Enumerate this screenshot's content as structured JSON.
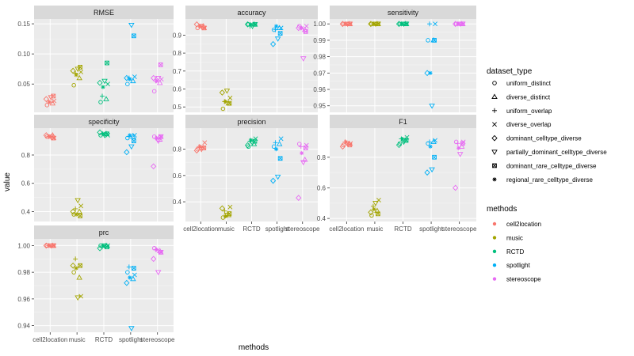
{
  "chart_data": {
    "type": "scatter",
    "xlabel": "methods",
    "ylabel": "value",
    "categories": [
      "cell2location",
      "music",
      "RCTD",
      "spotlight",
      "stereoscope"
    ],
    "colors": {
      "cell2location": "#F8766D",
      "music": "#A3A500",
      "RCTD": "#00BF7D",
      "spotlight": "#00B0F6",
      "stereoscope": "#E76BF3"
    },
    "legend_dataset_type": {
      "title": "dataset_type",
      "placement": "right",
      "entries": [
        {
          "label": "uniform_distinct",
          "shape": "circle"
        },
        {
          "label": "diverse_distinct",
          "shape": "triangle"
        },
        {
          "label": "uniform_overlap",
          "shape": "plus"
        },
        {
          "label": "diverse_overlap",
          "shape": "cross"
        },
        {
          "label": "dominant_celltype_diverse",
          "shape": "diamond"
        },
        {
          "label": "partially_dominant_celltype_diverse",
          "shape": "triangle-down"
        },
        {
          "label": "dominant_rare_celltype_diverse",
          "shape": "square-cross"
        },
        {
          "label": "regional_rare_celltype_diverse",
          "shape": "asterisk"
        }
      ]
    },
    "legend_methods": {
      "title": "methods",
      "placement": "right",
      "entries": [
        "cell2location",
        "music",
        "RCTD",
        "spotlight",
        "stereoscope"
      ]
    },
    "panels": [
      {
        "title": "RMSE",
        "ylim": [
          0.003,
          0.158
        ],
        "yticks": [
          0.05,
          0.1,
          0.15
        ],
        "ytick_labels": [
          "0.05",
          "0.10",
          "0.15"
        ],
        "show_x_ticks": false,
        "series": {
          "cell2location": [
            0.015,
            0.018,
            0.02,
            0.022,
            0.025,
            0.028,
            0.03,
            0.02
          ],
          "music": [
            0.048,
            0.06,
            0.068,
            0.07,
            0.072,
            0.075,
            0.078,
            0.065
          ],
          "RCTD": [
            0.02,
            0.025,
            0.03,
            0.05,
            0.052,
            0.055,
            0.085,
            0.045
          ],
          "spotlight": [
            0.05,
            0.055,
            0.06,
            0.062,
            0.06,
            0.148,
            0.13,
            0.058
          ],
          "stereoscope": [
            0.038,
            0.052,
            0.055,
            0.058,
            0.06,
            0.06,
            0.082,
            0.055
          ]
        }
      },
      {
        "title": "accuracy",
        "ylim": [
          0.47,
          0.99
        ],
        "yticks": [
          0.5,
          0.6,
          0.7,
          0.8,
          0.9
        ],
        "ytick_labels": [
          "0.5",
          "0.6",
          "0.7",
          "0.8",
          "0.9"
        ],
        "show_x_ticks": false,
        "series": {
          "cell2location": [
            0.94,
            0.95,
            0.95,
            0.94,
            0.96,
            0.95,
            0.94,
            0.95
          ],
          "music": [
            0.49,
            0.52,
            0.53,
            0.55,
            0.58,
            0.59,
            0.52,
            0.53
          ],
          "RCTD": [
            0.96,
            0.96,
            0.95,
            0.96,
            0.96,
            0.95,
            0.96,
            0.96
          ],
          "spotlight": [
            0.93,
            0.94,
            0.93,
            0.94,
            0.85,
            0.88,
            0.91,
            0.95
          ],
          "stereoscope": [
            0.95,
            0.93,
            0.94,
            0.95,
            0.94,
            0.77,
            0.92,
            0.94
          ]
        }
      },
      {
        "title": "sensitivity",
        "ylim": [
          0.946,
          1.003
        ],
        "yticks": [
          0.95,
          0.96,
          0.97,
          0.98,
          0.99,
          1.0
        ],
        "ytick_labels": [
          "0.95",
          "0.96",
          "0.97",
          "0.98",
          "0.99",
          "1.00"
        ],
        "show_x_ticks": false,
        "series": {
          "cell2location": [
            1.0,
            1.0,
            1.0,
            1.0,
            1.0,
            1.0,
            1.0,
            1.0
          ],
          "music": [
            1.0,
            1.0,
            1.0,
            1.0,
            1.0,
            1.0,
            1.0,
            1.0
          ],
          "RCTD": [
            1.0,
            1.0,
            1.0,
            1.0,
            1.0,
            1.0,
            1.0,
            1.0
          ],
          "spotlight": [
            0.99,
            0.99,
            1.0,
            1.0,
            0.97,
            0.95,
            0.99,
            0.97
          ],
          "stereoscope": [
            1.0,
            1.0,
            1.0,
            1.0,
            1.0,
            1.0,
            1.0,
            1.0
          ]
        }
      },
      {
        "title": "specificity",
        "ylim": [
          0.33,
          0.99
        ],
        "yticks": [
          0.4,
          0.6,
          0.8
        ],
        "ytick_labels": [
          "0.4",
          "0.6",
          "0.8"
        ],
        "show_x_ticks": false,
        "series": {
          "cell2location": [
            0.93,
            0.94,
            0.93,
            0.92,
            0.94,
            0.93,
            0.92,
            0.93
          ],
          "music": [
            0.38,
            0.4,
            0.42,
            0.44,
            0.4,
            0.48,
            0.37,
            0.38
          ],
          "RCTD": [
            0.94,
            0.95,
            0.95,
            0.94,
            0.96,
            0.94,
            0.95,
            0.95
          ],
          "spotlight": [
            0.92,
            0.93,
            0.93,
            0.94,
            0.82,
            0.86,
            0.9,
            0.94
          ],
          "stereoscope": [
            0.93,
            0.91,
            0.92,
            0.93,
            0.72,
            0.9,
            0.93,
            0.92
          ]
        }
      },
      {
        "title": "precision",
        "ylim": [
          0.25,
          0.96
        ],
        "yticks": [
          0.4,
          0.6,
          0.8
        ],
        "ytick_labels": [
          "0.4",
          "0.6",
          "0.8"
        ],
        "show_x_ticks": true,
        "series": {
          "cell2location": [
            0.8,
            0.81,
            0.82,
            0.85,
            0.79,
            0.8,
            0.81,
            0.82
          ],
          "music": [
            0.28,
            0.3,
            0.33,
            0.36,
            0.35,
            0.3,
            0.31,
            0.29
          ],
          "RCTD": [
            0.82,
            0.84,
            0.86,
            0.88,
            0.83,
            0.85,
            0.86,
            0.87
          ],
          "spotlight": [
            0.82,
            0.84,
            0.85,
            0.88,
            0.56,
            0.59,
            0.73,
            0.8
          ],
          "stereoscope": [
            0.84,
            0.72,
            0.82,
            0.83,
            0.43,
            0.7,
            0.81,
            0.77
          ]
        }
      },
      {
        "title": "F1",
        "ylim": [
          0.38,
          0.99
        ],
        "yticks": [
          0.4,
          0.6,
          0.8
        ],
        "ytick_labels": [
          "0.4",
          "0.6",
          "0.8"
        ],
        "show_x_ticks": true,
        "series": {
          "cell2location": [
            0.88,
            0.89,
            0.9,
            0.89,
            0.87,
            0.89,
            0.88,
            0.9
          ],
          "music": [
            0.42,
            0.45,
            0.48,
            0.52,
            0.44,
            0.5,
            0.43,
            0.46
          ],
          "RCTD": [
            0.89,
            0.91,
            0.92,
            0.93,
            0.88,
            0.9,
            0.91,
            0.92
          ],
          "spotlight": [
            0.89,
            0.9,
            0.9,
            0.91,
            0.7,
            0.72,
            0.8,
            0.87
          ],
          "stereoscope": [
            0.9,
            0.87,
            0.89,
            0.9,
            0.6,
            0.82,
            0.89,
            0.86
          ]
        }
      },
      {
        "title": "prc",
        "ylim": [
          0.935,
          1.005
        ],
        "yticks": [
          0.94,
          0.96,
          0.98,
          1.0
        ],
        "ytick_labels": [
          "0.94",
          "0.96",
          "0.98",
          "1.00"
        ],
        "show_x_ticks": true,
        "series": {
          "cell2location": [
            1.0,
            1.0,
            1.0,
            1.0,
            1.0,
            1.0,
            1.0,
            1.0
          ],
          "music": [
            0.98,
            0.976,
            0.99,
            0.962,
            0.985,
            0.961,
            0.985,
            0.983
          ],
          "RCTD": [
            1.0,
            1.0,
            0.999,
            1.0,
            0.998,
            1.0,
            0.999,
            1.0
          ],
          "spotlight": [
            0.98,
            0.975,
            0.984,
            0.978,
            0.972,
            0.938,
            0.983,
            0.976
          ],
          "stereoscope": [
            0.998,
            0.996,
            0.997,
            0.995,
            0.99,
            0.98,
            0.995,
            0.997
          ]
        }
      }
    ]
  }
}
